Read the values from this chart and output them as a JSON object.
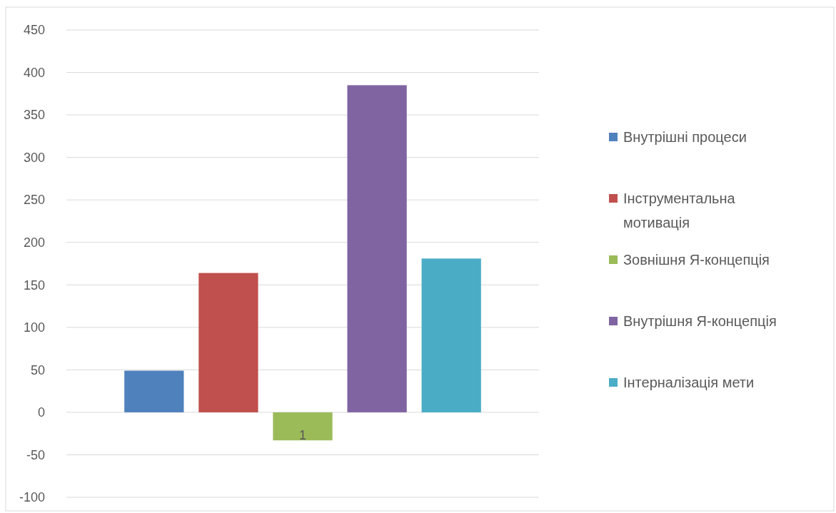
{
  "chart_data": {
    "type": "bar",
    "categories": [
      "1"
    ],
    "series": [
      {
        "name": "Внутрішні процеси",
        "color": "#4f81bd",
        "values": [
          49
        ]
      },
      {
        "name": "Інструментальна мотивація",
        "color": "#c0504d",
        "values": [
          164
        ]
      },
      {
        "name": "Зовнішня Я-концепція",
        "color": "#9bbb59",
        "values": [
          -33
        ]
      },
      {
        "name": "Внутрішня Я-концепція",
        "color": "#8064a2",
        "values": [
          385
        ]
      },
      {
        "name": "Інтерналізація мети",
        "color": "#4bacc6",
        "values": [
          181
        ]
      }
    ],
    "ylim": [
      -100,
      450
    ],
    "yticks": [
      -100,
      -50,
      0,
      50,
      100,
      150,
      200,
      250,
      300,
      350,
      400,
      450
    ],
    "grid": "y",
    "legend": "right"
  }
}
